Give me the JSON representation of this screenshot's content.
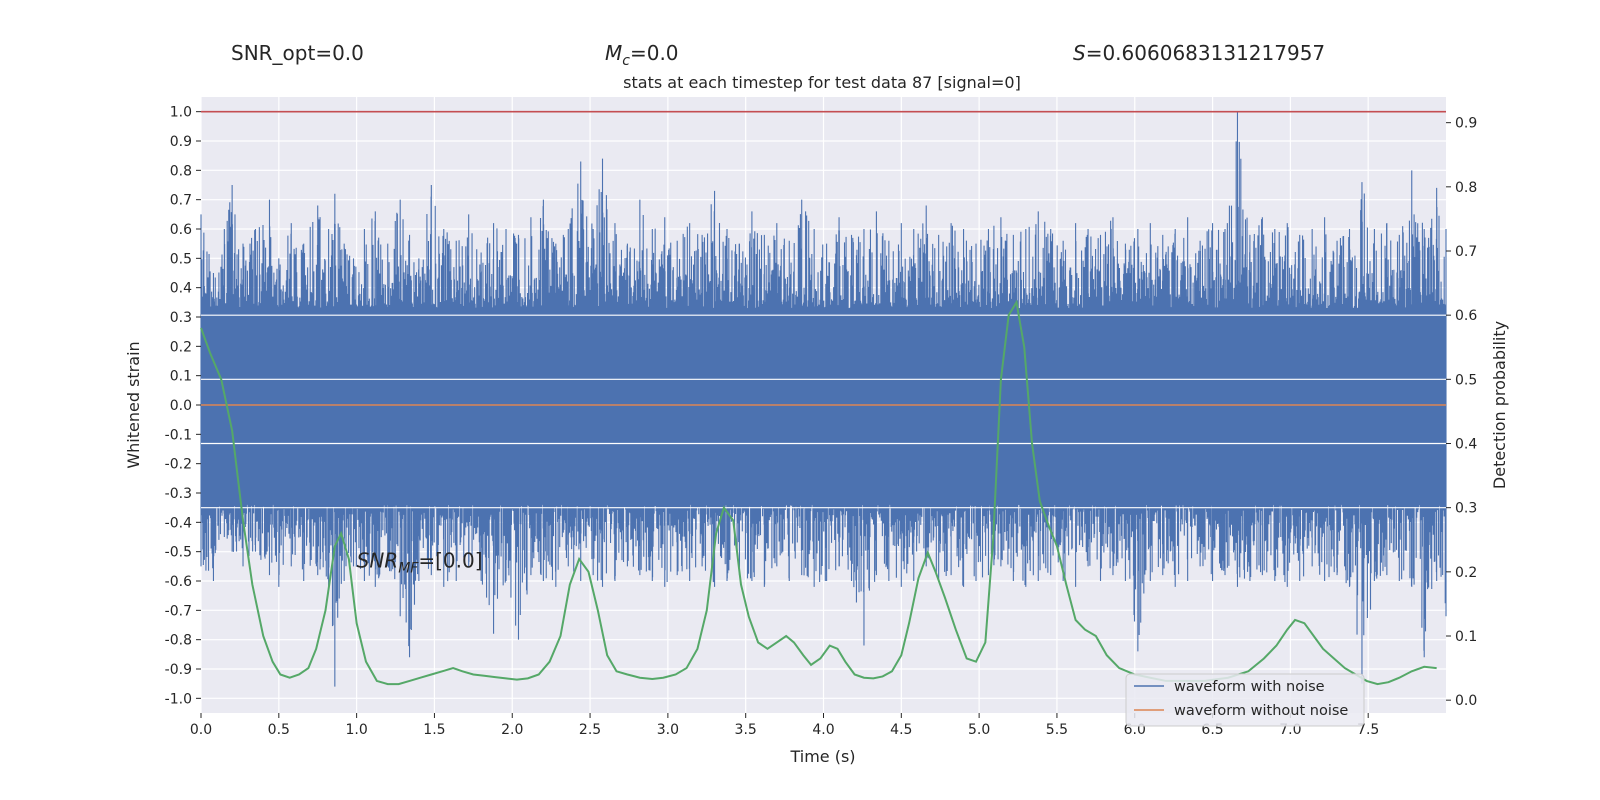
{
  "header": {
    "snr_opt": "SNR_opt=0.0",
    "mc_symbol": "M",
    "mc_sub": "c",
    "mc_value": "=0.0",
    "s_symbol": "S",
    "s_value": "=0.6060683131217957"
  },
  "chart_data": {
    "type": "line",
    "title": "stats at each timestep for test data 87 [signal=0]",
    "xlabel": "Time (s)",
    "ylabel": "Whitened strain",
    "y2label": "Detection probability",
    "xlim": [
      0.0,
      8.0
    ],
    "ylim": [
      -1.05,
      1.05
    ],
    "y2lim": [
      -0.02,
      0.94
    ],
    "xticks": [
      "0.0",
      "0.5",
      "1.0",
      "1.5",
      "2.0",
      "2.5",
      "3.0",
      "3.5",
      "4.0",
      "4.5",
      "5.0",
      "5.5",
      "6.0",
      "6.5",
      "7.0",
      "7.5"
    ],
    "yticks": [
      "1.0",
      "0.9",
      "0.8",
      "0.7",
      "0.6",
      "0.5",
      "0.4",
      "0.3",
      "0.2",
      "0.1",
      "0.0",
      "-0.1",
      "-0.2",
      "-0.3",
      "-0.4",
      "-0.5",
      "-0.6",
      "-0.7",
      "-0.8",
      "-0.9",
      "-1.0"
    ],
    "y2ticks": [
      "0.9",
      "0.8",
      "0.7",
      "0.6",
      "0.5",
      "0.4",
      "0.3",
      "0.2",
      "0.1",
      "0.0"
    ],
    "grid": true,
    "legend_position": "lower-right",
    "colors": {
      "noise": "#4c72b0",
      "clean": "#dd8452",
      "probability": "#55a868",
      "threshold": "#c44e52",
      "background": "#eaeaf2",
      "grid": "#ffffff"
    },
    "series": [
      {
        "name": "waveform with noise",
        "envelope": {
          "t": [
            0.0,
            0.08,
            0.15,
            0.2,
            0.27,
            0.35,
            0.44,
            0.5,
            0.58,
            0.66,
            0.75,
            0.82,
            0.86,
            0.92,
            0.98,
            1.05,
            1.12,
            1.2,
            1.28,
            1.34,
            1.4,
            1.48,
            1.56,
            1.64,
            1.72,
            1.8,
            1.88,
            1.96,
            2.04,
            2.12,
            2.2,
            2.28,
            2.36,
            2.44,
            2.52,
            2.58,
            2.66,
            2.74,
            2.82,
            2.9,
            2.98,
            3.06,
            3.14,
            3.22,
            3.3,
            3.38,
            3.46,
            3.54,
            3.62,
            3.7,
            3.78,
            3.86,
            3.94,
            4.02,
            4.1,
            4.18,
            4.26,
            4.34,
            4.42,
            4.5,
            4.58,
            4.66,
            4.74,
            4.82,
            4.9,
            4.98,
            5.06,
            5.14,
            5.22,
            5.3,
            5.38,
            5.46,
            5.54,
            5.62,
            5.7,
            5.78,
            5.86,
            5.94,
            6.02,
            6.1,
            6.18,
            6.26,
            6.34,
            6.42,
            6.5,
            6.58,
            6.66,
            6.74,
            6.82,
            6.9,
            6.98,
            7.06,
            7.14,
            7.22,
            7.3,
            7.38,
            7.46,
            7.54,
            7.62,
            7.7,
            7.78,
            7.86,
            7.94,
            8.0
          ],
          "max": [
            0.65,
            0.45,
            0.6,
            0.75,
            0.55,
            0.6,
            0.7,
            0.5,
            0.62,
            0.55,
            0.68,
            0.6,
            0.72,
            0.55,
            0.5,
            0.6,
            0.66,
            0.55,
            0.7,
            0.58,
            0.5,
            0.75,
            0.6,
            0.56,
            0.65,
            0.52,
            0.62,
            0.6,
            0.58,
            0.64,
            0.7,
            0.55,
            0.6,
            0.83,
            0.6,
            0.84,
            0.62,
            0.55,
            0.7,
            0.6,
            0.64,
            0.56,
            0.62,
            0.58,
            0.73,
            0.6,
            0.55,
            0.66,
            0.58,
            0.62,
            0.56,
            0.7,
            0.6,
            0.55,
            0.64,
            0.58,
            0.6,
            0.66,
            0.56,
            0.62,
            0.6,
            0.68,
            0.58,
            0.62,
            0.6,
            0.55,
            0.6,
            0.64,
            0.58,
            0.6,
            0.66,
            0.6,
            0.56,
            0.62,
            0.6,
            0.58,
            0.64,
            0.55,
            0.6,
            0.62,
            0.58,
            0.6,
            0.64,
            0.56,
            0.62,
            0.6,
            1.0,
            0.58,
            0.64,
            0.6,
            0.62,
            0.58,
            0.6,
            0.64,
            0.56,
            0.6,
            0.76,
            0.6,
            0.62,
            0.58,
            0.8,
            0.6,
            0.74,
            0.6
          ],
          "min": [
            -0.55,
            -0.6,
            -0.45,
            -0.5,
            -0.55,
            -0.5,
            -0.58,
            -0.62,
            -0.55,
            -0.6,
            -0.58,
            -0.62,
            -0.96,
            -0.6,
            -0.55,
            -0.6,
            -0.62,
            -0.55,
            -0.72,
            -0.86,
            -0.6,
            -0.58,
            -0.62,
            -0.6,
            -0.55,
            -0.6,
            -0.78,
            -0.6,
            -0.8,
            -0.58,
            -0.6,
            -0.62,
            -0.55,
            -0.6,
            -0.58,
            -0.62,
            -0.6,
            -0.55,
            -0.58,
            -0.6,
            -0.62,
            -0.58,
            -0.6,
            -0.55,
            -0.62,
            -0.6,
            -0.58,
            -0.6,
            -0.62,
            -0.55,
            -0.6,
            -0.58,
            -0.62,
            -0.6,
            -0.55,
            -0.6,
            -0.82,
            -0.58,
            -0.6,
            -0.62,
            -0.6,
            -0.55,
            -0.6,
            -0.58,
            -0.62,
            -0.6,
            -0.58,
            -0.55,
            -0.6,
            -0.62,
            -0.6,
            -0.58,
            -0.6,
            -0.62,
            -0.55,
            -0.6,
            -0.58,
            -0.6,
            -0.84,
            -0.6,
            -0.58,
            -0.62,
            -0.6,
            -0.55,
            -0.6,
            -0.58,
            -0.62,
            -0.6,
            -0.58,
            -0.6,
            -0.62,
            -0.6,
            -0.55,
            -0.6,
            -0.58,
            -0.62,
            -0.95,
            -0.6,
            -0.58,
            -0.6,
            -0.62,
            -0.86,
            -0.6,
            -0.72
          ],
          "band": [
            -0.34,
            0.33
          ]
        }
      },
      {
        "name": "waveform without noise",
        "t": [
          0.0,
          8.0
        ],
        "y": [
          0.0,
          0.0
        ]
      },
      {
        "name": "detection probability",
        "axis": "right",
        "t": [
          0.0,
          0.06,
          0.13,
          0.2,
          0.27,
          0.33,
          0.4,
          0.46,
          0.51,
          0.57,
          0.63,
          0.69,
          0.74,
          0.8,
          0.86,
          0.9,
          0.95,
          1.0,
          1.06,
          1.13,
          1.2,
          1.27,
          1.34,
          1.41,
          1.48,
          1.55,
          1.62,
          1.68,
          1.75,
          1.82,
          1.89,
          1.96,
          2.03,
          2.1,
          2.17,
          2.24,
          2.31,
          2.37,
          2.43,
          2.49,
          2.55,
          2.61,
          2.67,
          2.74,
          2.82,
          2.9,
          2.97,
          3.05,
          3.12,
          3.19,
          3.25,
          3.31,
          3.36,
          3.42,
          3.47,
          3.52,
          3.58,
          3.64,
          3.7,
          3.76,
          3.81,
          3.87,
          3.92,
          3.98,
          4.04,
          4.09,
          4.14,
          4.2,
          4.26,
          4.32,
          4.38,
          4.44,
          4.5,
          4.55,
          4.61,
          4.67,
          4.72,
          4.78,
          4.85,
          4.92,
          4.98,
          5.04,
          5.09,
          5.14,
          5.19,
          5.24,
          5.29,
          5.34,
          5.39,
          5.45,
          5.5,
          5.56,
          5.62,
          5.68,
          5.75,
          5.82,
          5.9,
          6.0,
          6.1,
          6.2,
          6.3,
          6.45,
          6.6,
          6.73,
          6.83,
          6.91,
          6.98,
          7.03,
          7.09,
          7.15,
          7.21,
          7.28,
          7.35,
          7.42,
          7.49,
          7.56,
          7.63,
          7.7,
          7.78,
          7.86,
          7.94
        ],
        "p": [
          0.58,
          0.54,
          0.5,
          0.42,
          0.28,
          0.18,
          0.1,
          0.06,
          0.04,
          0.035,
          0.04,
          0.05,
          0.08,
          0.14,
          0.24,
          0.26,
          0.22,
          0.12,
          0.06,
          0.03,
          0.025,
          0.025,
          0.03,
          0.035,
          0.04,
          0.045,
          0.05,
          0.045,
          0.04,
          0.038,
          0.036,
          0.034,
          0.032,
          0.034,
          0.04,
          0.06,
          0.1,
          0.18,
          0.22,
          0.2,
          0.14,
          0.07,
          0.045,
          0.04,
          0.035,
          0.033,
          0.035,
          0.04,
          0.05,
          0.08,
          0.14,
          0.26,
          0.3,
          0.28,
          0.18,
          0.13,
          0.09,
          0.08,
          0.09,
          0.1,
          0.09,
          0.07,
          0.055,
          0.065,
          0.085,
          0.08,
          0.06,
          0.04,
          0.035,
          0.034,
          0.037,
          0.045,
          0.07,
          0.12,
          0.19,
          0.23,
          0.2,
          0.16,
          0.11,
          0.065,
          0.06,
          0.09,
          0.25,
          0.5,
          0.6,
          0.62,
          0.55,
          0.4,
          0.31,
          0.27,
          0.24,
          0.18,
          0.125,
          0.11,
          0.1,
          0.07,
          0.05,
          0.04,
          0.035,
          0.03,
          0.03,
          0.03,
          0.035,
          0.045,
          0.065,
          0.085,
          0.11,
          0.125,
          0.12,
          0.1,
          0.08,
          0.065,
          0.05,
          0.04,
          0.03,
          0.025,
          0.028,
          0.035,
          0.045,
          0.052,
          0.05
        ]
      }
    ],
    "threshold": {
      "y": 1.0
    },
    "annotation": {
      "text_main": "SNR",
      "text_sub": "MF",
      "text_rest": "=[0.0]",
      "x": 1.0,
      "y": -0.53
    }
  }
}
